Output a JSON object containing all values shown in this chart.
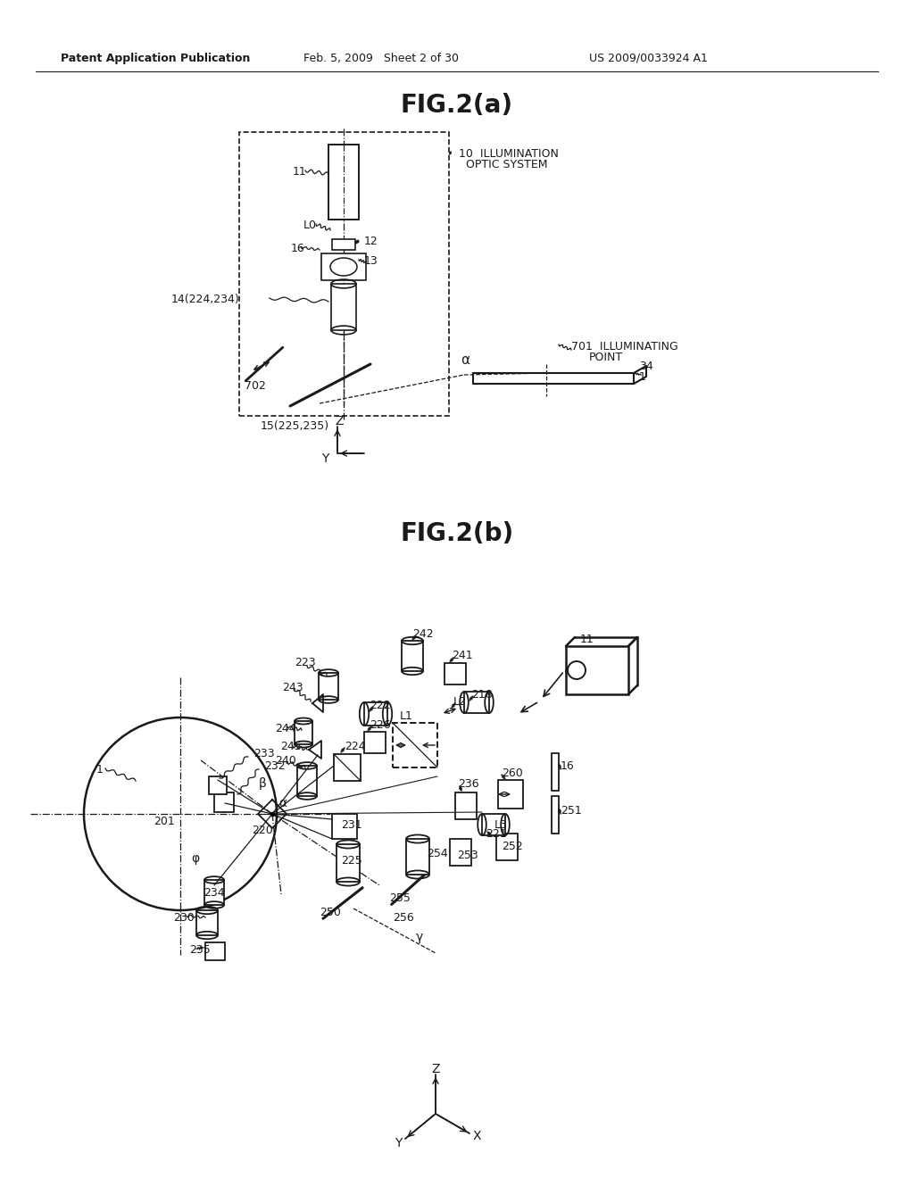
{
  "bg_color": "#ffffff",
  "lc": "#1a1a1a",
  "tc": "#1a1a1a",
  "header_left": "Patent Application Publication",
  "header_mid": "Feb. 5, 2009   Sheet 2 of 30",
  "header_right": "US 2009/0033924 A1",
  "fig2a_title": "FIG.2(a)",
  "fig2b_title": "FIG.2(b)"
}
